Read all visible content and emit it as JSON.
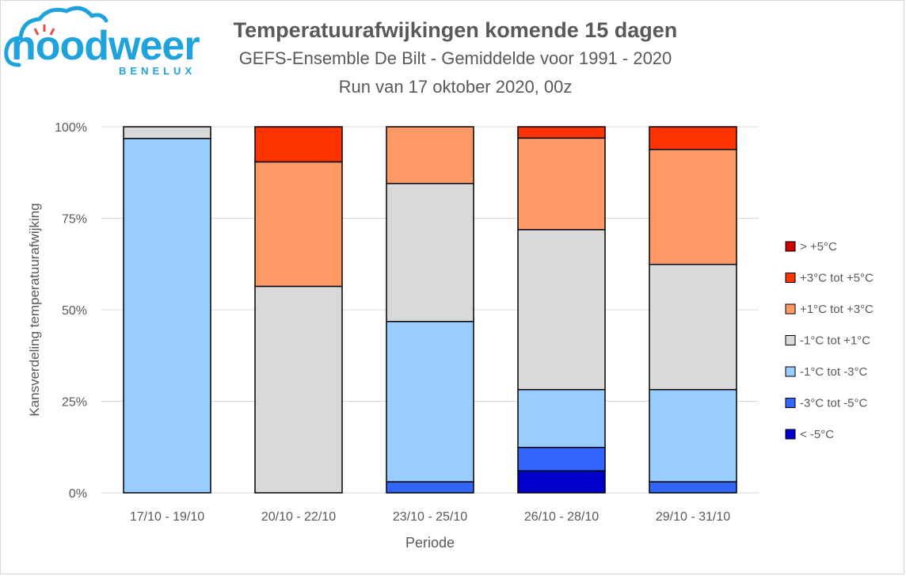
{
  "logo": {
    "wordmark": "noodweer",
    "sub": "BENELUX"
  },
  "chart_data": {
    "type": "bar",
    "stacked": true,
    "title": "Temperatuurafwijkingen komende 15 dagen",
    "subtitle": "GEFS-Ensemble De Bilt - Gemiddelde voor 1991 - 2020",
    "subtitle2": "Run van 17 oktober 2020, 00z",
    "xlabel": "Periode",
    "ylabel": "Kansverdeling temperatuurafwijking",
    "ylim": [
      0,
      100
    ],
    "yticks": [
      "0%",
      "25%",
      "50%",
      "75%",
      "100%"
    ],
    "grid": true,
    "legend_position": "right",
    "categories": [
      "17/10 - 19/10",
      "20/10 - 22/10",
      "23/10 - 25/10",
      "26/10 - 28/10",
      "29/10 - 31/10"
    ],
    "series": [
      {
        "name": "< -5°C",
        "color": "#0000cc",
        "values": [
          0,
          0,
          0,
          6,
          0
        ]
      },
      {
        "name": "-3°C tot -5°C",
        "color": "#3366ff",
        "values": [
          0,
          0,
          3,
          6.4,
          3
        ]
      },
      {
        "name": "-1°C tot -3°C",
        "color": "#99ccff",
        "values": [
          96.8,
          0,
          43.8,
          15.8,
          25.2
        ]
      },
      {
        "name": "-1°C tot +1°C",
        "color": "#d9d9d9",
        "values": [
          3.2,
          56.4,
          37.7,
          43.7,
          34.2
        ]
      },
      {
        "name": "+1°C tot +3°C",
        "color": "#ff9966",
        "values": [
          0,
          34,
          15.5,
          25,
          31.4
        ]
      },
      {
        "name": "+3°C tot +5°C",
        "color": "#ff3300",
        "values": [
          0,
          9.6,
          0,
          3.1,
          6.2
        ]
      },
      {
        "name": "> +5°C",
        "color": "#cc0000",
        "values": [
          0,
          0,
          0,
          0,
          0
        ]
      }
    ]
  }
}
